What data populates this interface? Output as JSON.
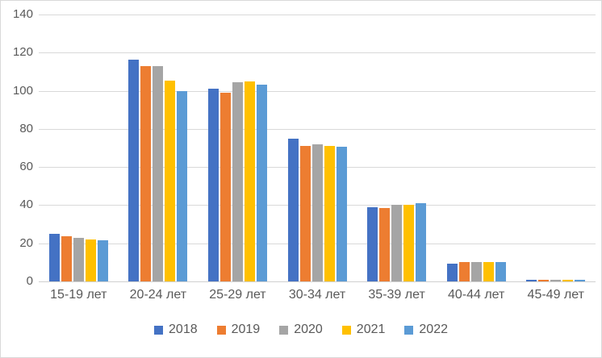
{
  "chart_data": {
    "type": "bar",
    "title": "",
    "xlabel": "",
    "ylabel": "",
    "categories": [
      "15-19 лет",
      "20-24 лет",
      "25-29 лет",
      "30-34 лет",
      "35-39 лет",
      "40-44 лет",
      "45-49 лет"
    ],
    "series": [
      {
        "name": "2018",
        "color": "#4472C4",
        "values": [
          25,
          116.5,
          101,
          75,
          39,
          9.5,
          0.8
        ]
      },
      {
        "name": "2019",
        "color": "#ED7D31",
        "values": [
          23.5,
          113,
          99,
          71,
          38.5,
          10,
          0.8
        ]
      },
      {
        "name": "2020",
        "color": "#A5A5A5",
        "values": [
          23,
          113,
          104.5,
          72,
          40,
          10,
          0.8
        ]
      },
      {
        "name": "2021",
        "color": "#FFC000",
        "values": [
          22,
          105.5,
          105,
          71,
          40,
          10,
          0.8
        ]
      },
      {
        "name": "2022",
        "color": "#5B9BD5",
        "values": [
          21.5,
          100,
          103,
          70.5,
          41,
          10,
          0.8
        ]
      }
    ],
    "ylim": [
      0,
      140
    ],
    "yticks": [
      0,
      20,
      40,
      60,
      80,
      100,
      120,
      140
    ],
    "grid": "horizontal",
    "legend_position": "bottom"
  },
  "style": {
    "grid_color": "#d9d9d9",
    "axis_text_color": "#595959",
    "background": "#ffffff",
    "border_color": "#d9d9d9"
  }
}
